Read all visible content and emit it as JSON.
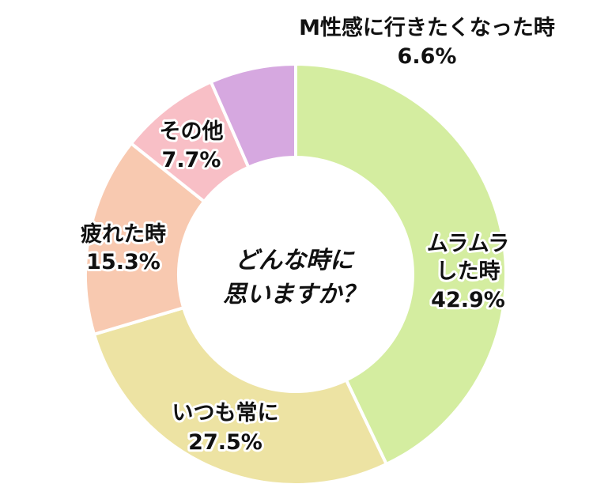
{
  "chart_data": {
    "type": "pie",
    "donut": true,
    "center_text": [
      "どんな時に",
      "思いますか？"
    ],
    "slices": [
      {
        "label": [
          "ムラムラ",
          "した時"
        ],
        "percent_text": "42.9%",
        "value": 42.9,
        "color": "#d4eda0"
      },
      {
        "label": [
          "いつも常に"
        ],
        "percent_text": "27.5%",
        "value": 27.5,
        "color": "#ede3a3"
      },
      {
        "label": [
          "疲れた時"
        ],
        "percent_text": "15.3%",
        "value": 15.3,
        "color": "#f8c9b0"
      },
      {
        "label": [
          "その他"
        ],
        "percent_text": "7.7%",
        "value": 7.7,
        "color": "#f8bfc6"
      },
      {
        "label": [
          "M性感に行きたくなった時"
        ],
        "percent_text": "6.6%",
        "value": 6.6,
        "color": "#d6a8e0"
      }
    ],
    "start_angle": "12 o'clock",
    "direction": "clockwise",
    "legend": "none"
  }
}
